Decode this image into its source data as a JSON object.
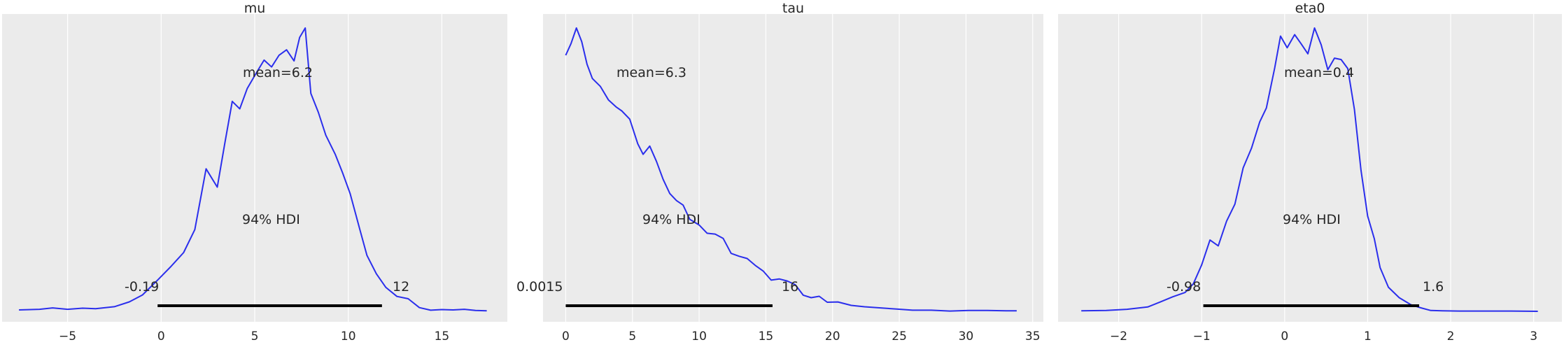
{
  "chart_data": [
    {
      "type": "line",
      "title": "mu",
      "xlim": [
        -8.5,
        18.5
      ],
      "xticks": [
        -5,
        0,
        5,
        10,
        15
      ],
      "xtick_labels": [
        "−5",
        "0",
        "5",
        "10",
        "15"
      ],
      "grid": true,
      "kde": {
        "x": [
          -7.6,
          -6.5,
          -5.8,
          -5.0,
          -4.2,
          -3.5,
          -2.5,
          -1.7,
          -1.0,
          -0.2,
          0.5,
          1.2,
          1.8,
          2.4,
          3.0,
          3.4,
          3.8,
          4.2,
          4.6,
          5.1,
          5.5,
          5.9,
          6.3,
          6.7,
          7.1,
          7.4,
          7.7,
          8.0,
          8.4,
          8.8,
          9.3,
          9.7,
          10.1,
          10.6,
          11.0,
          11.5,
          12.0,
          12.6,
          13.2,
          13.8,
          14.4,
          15.0,
          15.6,
          16.2,
          16.8,
          17.4
        ],
        "density": [
          0.005,
          0.007,
          0.012,
          0.007,
          0.011,
          0.009,
          0.016,
          0.033,
          0.057,
          0.108,
          0.155,
          0.205,
          0.285,
          0.497,
          0.433,
          0.585,
          0.732,
          0.706,
          0.777,
          0.833,
          0.876,
          0.852,
          0.893,
          0.912,
          0.873,
          0.955,
          0.988,
          0.76,
          0.694,
          0.614,
          0.548,
          0.482,
          0.41,
          0.29,
          0.195,
          0.131,
          0.084,
          0.052,
          0.044,
          0.013,
          0.004,
          0.006,
          0.005,
          0.007,
          0.003,
          0.002
        ]
      },
      "mean_label": "mean=6.2",
      "hdi_label": "94% HDI",
      "hdi": [
        -0.19,
        11.8
      ],
      "hdi_low_label": "-0.19",
      "hdi_high_label": "12"
    },
    {
      "type": "line",
      "title": "tau",
      "xlim": [
        -1.7,
        35.8
      ],
      "xticks": [
        0,
        5,
        10,
        15,
        20,
        25,
        30,
        35
      ],
      "xtick_labels": [
        "0",
        "5",
        "10",
        "15",
        "20",
        "25",
        "30",
        "35"
      ],
      "grid": true,
      "kde": {
        "x": [
          0.0,
          0.4,
          0.8,
          1.2,
          1.6,
          2.0,
          2.6,
          3.2,
          3.8,
          4.2,
          4.8,
          5.4,
          5.8,
          6.3,
          6.8,
          7.3,
          7.8,
          8.3,
          8.8,
          9.3,
          10.0,
          10.6,
          11.2,
          11.8,
          12.4,
          13.0,
          13.6,
          14.2,
          14.8,
          15.4,
          16.0,
          16.6,
          17.2,
          17.8,
          18.4,
          19.0,
          19.6,
          20.4,
          21.4,
          22.4,
          23.6,
          24.8,
          26.0,
          27.4,
          28.8,
          30.2,
          31.6,
          33.0,
          33.8
        ],
        "density": [
          0.902,
          0.943,
          0.998,
          0.95,
          0.87,
          0.82,
          0.792,
          0.745,
          0.719,
          0.706,
          0.677,
          0.59,
          0.553,
          0.582,
          0.528,
          0.465,
          0.415,
          0.39,
          0.374,
          0.324,
          0.304,
          0.275,
          0.272,
          0.257,
          0.204,
          0.194,
          0.186,
          0.162,
          0.142,
          0.11,
          0.114,
          0.107,
          0.094,
          0.057,
          0.048,
          0.053,
          0.032,
          0.033,
          0.021,
          0.016,
          0.012,
          0.008,
          0.004,
          0.004,
          0.001,
          0.003,
          0.003,
          0.002,
          0.002
        ]
      },
      "mean_label": "mean=6.3",
      "hdi_label": "94% HDI",
      "hdi": [
        0.0015,
        15.5
      ],
      "hdi_low_label": "0.0015",
      "hdi_high_label": "16"
    },
    {
      "type": "line",
      "title": "eta0",
      "xlim": [
        -2.73,
        3.34
      ],
      "xticks": [
        -2,
        -1,
        0,
        1,
        2,
        3
      ],
      "xtick_labels": [
        "−2",
        "−1",
        "0",
        "1",
        "2",
        "3"
      ],
      "grid": true,
      "kde": {
        "x": [
          -2.45,
          -2.15,
          -1.9,
          -1.65,
          -1.5,
          -1.35,
          -1.2,
          -1.1,
          -1.0,
          -0.9,
          -0.8,
          -0.7,
          -0.6,
          -0.5,
          -0.4,
          -0.3,
          -0.22,
          -0.12,
          -0.05,
          0.03,
          0.12,
          0.2,
          0.28,
          0.36,
          0.44,
          0.52,
          0.6,
          0.68,
          0.76,
          0.84,
          0.92,
          1.0,
          1.08,
          1.15,
          1.25,
          1.38,
          1.52,
          1.64,
          1.76,
          1.9,
          2.1,
          2.35,
          2.65,
          3.05
        ],
        "density": [
          0.002,
          0.003,
          0.007,
          0.015,
          0.032,
          0.05,
          0.065,
          0.095,
          0.16,
          0.246,
          0.226,
          0.311,
          0.37,
          0.495,
          0.563,
          0.654,
          0.702,
          0.84,
          0.95,
          0.91,
          0.955,
          0.923,
          0.889,
          0.978,
          0.92,
          0.834,
          0.874,
          0.869,
          0.838,
          0.697,
          0.487,
          0.329,
          0.251,
          0.151,
          0.083,
          0.047,
          0.023,
          0.012,
          0.003,
          0.002,
          0.001,
          0.001,
          0.001,
          0.0
        ]
      },
      "mean_label": "mean=0.4",
      "hdi_label": "94% HDI",
      "hdi": [
        -0.98,
        1.62
      ],
      "hdi_low_label": "-0.98",
      "hdi_high_label": "1.6"
    }
  ],
  "colors": {
    "panel_bg": "#ebebeb",
    "grid": "#ffffff",
    "kde_line": "#2a2eec",
    "hdi_bar": "#000000",
    "text": "#262626"
  }
}
